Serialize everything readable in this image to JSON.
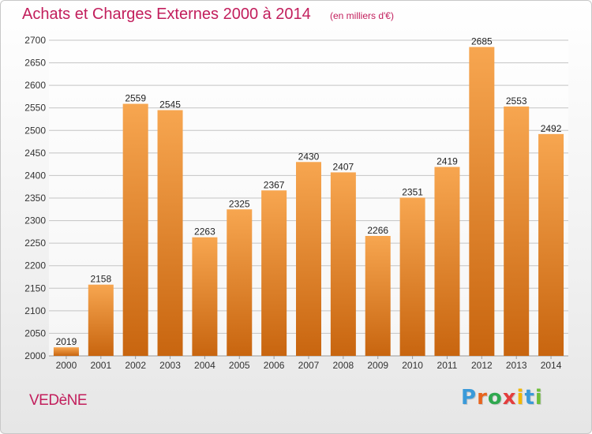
{
  "header": {
    "title": "Achats et Charges Externes 2000 à 2014",
    "subtitle": "(en milliers d'€)"
  },
  "footer": {
    "place": "VEDèNE",
    "brand": "Proxiti",
    "brand_letters": [
      "P",
      "r",
      "o",
      "x",
      "i",
      "t",
      "i"
    ],
    "brand_colors": [
      "#3a9ad9",
      "#e8641e",
      "#2fa84f",
      "#e33d3d",
      "#f2b705",
      "#3a9ad9",
      "#6cbf3a"
    ]
  },
  "colors": {
    "accent": "#c21e5c",
    "bar_light": "#f7a650",
    "bar_dark": "#c8650f"
  },
  "chart_data": {
    "type": "bar",
    "title": "Achats et Charges Externes 2000 à 2014",
    "subtitle": "(en milliers d'€)",
    "categories": [
      "2000",
      "2001",
      "2002",
      "2003",
      "2004",
      "2005",
      "2006",
      "2007",
      "2008",
      "2009",
      "2010",
      "2011",
      "2012",
      "2013",
      "2014"
    ],
    "values": [
      2019,
      2158,
      2559,
      2545,
      2263,
      2325,
      2367,
      2430,
      2407,
      2266,
      2351,
      2419,
      2685,
      2553,
      2492
    ],
    "ylim": [
      2000,
      2700
    ],
    "yticks": [
      2000,
      2050,
      2100,
      2150,
      2200,
      2250,
      2300,
      2350,
      2400,
      2450,
      2500,
      2550,
      2600,
      2650,
      2700
    ],
    "grid": true,
    "data_labels": true
  }
}
